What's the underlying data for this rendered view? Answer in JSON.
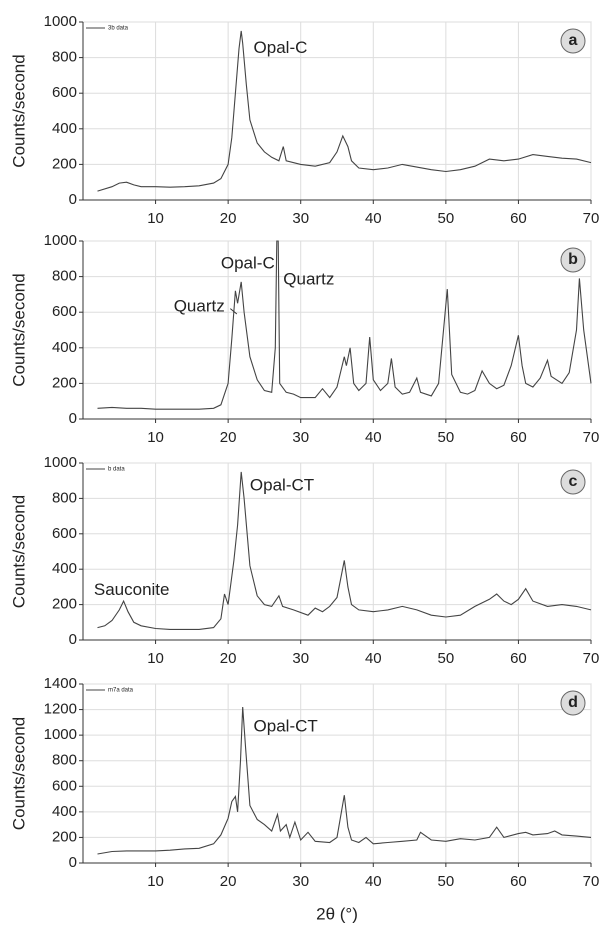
{
  "chart_data": [
    {
      "type": "line",
      "panel": "a",
      "ylabel": "Counts/second",
      "annotations": [
        "Opal-C"
      ],
      "x": [
        2,
        4,
        5,
        6,
        7,
        8,
        10,
        12,
        14,
        16,
        18,
        19,
        20,
        20.5,
        21,
        21.5,
        21.8,
        22,
        22.5,
        23,
        24,
        25,
        26,
        27,
        27.6,
        28,
        30,
        32,
        34,
        35,
        35.8,
        36.5,
        37,
        38,
        40,
        42,
        44,
        46,
        48,
        50,
        52,
        54,
        56,
        58,
        60,
        62,
        64,
        66,
        68,
        70
      ],
      "series": [
        {
          "name": "3b data",
          "color": "#444444",
          "values": [
            50,
            75,
            95,
            100,
            85,
            75,
            75,
            72,
            75,
            80,
            95,
            120,
            200,
            350,
            600,
            850,
            950,
            880,
            650,
            450,
            320,
            270,
            240,
            220,
            300,
            220,
            200,
            190,
            210,
            270,
            360,
            300,
            220,
            180,
            170,
            180,
            200,
            185,
            170,
            160,
            170,
            190,
            230,
            220,
            230,
            255,
            245,
            235,
            230,
            210
          ]
        }
      ],
      "xlim": [
        0,
        70
      ],
      "xticks": [
        10,
        20,
        30,
        40,
        50,
        60,
        70
      ],
      "ylim": [
        0,
        1000
      ],
      "yticks": [
        0,
        200,
        400,
        600,
        800,
        1000
      ],
      "grid": true
    },
    {
      "type": "line",
      "panel": "b",
      "ylabel": "Counts/second",
      "annotations": [
        "Opal-C",
        "Quartz",
        "Quartz"
      ],
      "x": [
        2,
        4,
        6,
        8,
        10,
        12,
        14,
        16,
        18,
        19,
        20,
        20.5,
        21,
        21.3,
        21.8,
        22.2,
        23,
        24,
        25,
        26,
        26.5,
        26.7,
        26.9,
        27.1,
        28,
        29,
        30,
        32,
        33,
        34,
        35,
        36,
        36.3,
        36.8,
        37.3,
        38,
        39,
        39.5,
        40,
        41,
        42,
        42.5,
        43,
        44,
        45,
        46,
        46.5,
        48,
        49,
        50.2,
        50.8,
        52,
        53,
        54,
        55,
        56,
        57,
        58,
        59,
        60,
        60.5,
        61,
        62,
        63,
        64,
        64.5,
        66,
        67,
        68,
        68.4,
        69,
        70
      ],
      "series": [
        {
          "color": "#444444",
          "values": [
            60,
            65,
            60,
            60,
            55,
            55,
            55,
            55,
            60,
            80,
            200,
            450,
            720,
            650,
            770,
            600,
            350,
            220,
            160,
            150,
            400,
            1000,
            1000,
            200,
            150,
            140,
            120,
            120,
            170,
            120,
            180,
            350,
            300,
            400,
            200,
            160,
            200,
            460,
            220,
            160,
            200,
            340,
            180,
            140,
            150,
            230,
            150,
            130,
            200,
            730,
            250,
            150,
            140,
            160,
            270,
            200,
            170,
            190,
            300,
            470,
            300,
            200,
            180,
            230,
            330,
            240,
            200,
            260,
            500,
            790,
            500,
            200
          ]
        }
      ],
      "xlim": [
        0,
        70
      ],
      "xticks": [
        10,
        20,
        30,
        40,
        50,
        60,
        70
      ],
      "ylim": [
        0,
        1000
      ],
      "yticks": [
        0,
        200,
        400,
        600,
        800,
        1000
      ],
      "grid": true
    },
    {
      "type": "line",
      "panel": "c",
      "ylabel": "Counts/second",
      "annotations": [
        "Opal-CT",
        "Sauconite"
      ],
      "x": [
        2,
        3,
        4,
        5,
        5.6,
        6.2,
        7,
        8,
        10,
        12,
        14,
        16,
        18,
        19,
        19.5,
        20,
        20.8,
        21.3,
        21.8,
        22.2,
        23,
        24,
        25,
        26,
        27,
        27.5,
        29,
        31,
        32,
        33,
        34,
        35,
        36,
        36.5,
        37,
        38,
        40,
        42,
        44,
        46,
        48,
        50,
        52,
        54,
        56,
        57,
        58,
        59,
        60,
        61,
        62,
        64,
        66,
        68,
        70
      ],
      "series": [
        {
          "name": "b data",
          "color": "#444444",
          "values": [
            70,
            80,
            110,
            170,
            220,
            160,
            100,
            80,
            65,
            60,
            60,
            60,
            70,
            120,
            260,
            200,
            450,
            650,
            950,
            800,
            420,
            250,
            200,
            190,
            250,
            190,
            170,
            140,
            180,
            160,
            190,
            240,
            450,
            300,
            200,
            170,
            160,
            170,
            190,
            170,
            140,
            130,
            140,
            190,
            230,
            260,
            220,
            200,
            230,
            290,
            220,
            190,
            200,
            190,
            170
          ]
        }
      ],
      "xlim": [
        0,
        70
      ],
      "xticks": [
        10,
        20,
        30,
        40,
        50,
        60,
        70
      ],
      "ylim": [
        0,
        1000
      ],
      "yticks": [
        0,
        200,
        400,
        600,
        800,
        1000
      ],
      "grid": true
    },
    {
      "type": "line",
      "panel": "d",
      "ylabel": "Counts/second",
      "xlabel": "2θ (°)",
      "annotations": [
        "Opal-CT"
      ],
      "x": [
        2,
        4,
        6,
        8,
        10,
        12,
        14,
        16,
        18,
        19,
        20,
        20.5,
        21,
        21.3,
        21.7,
        22,
        22.4,
        23,
        24,
        25,
        26,
        26.8,
        27.2,
        28,
        28.5,
        29.2,
        30,
        31,
        32,
        34,
        35,
        36,
        36.5,
        37,
        38,
        39,
        40,
        42,
        44,
        46,
        46.5,
        48,
        50,
        52,
        54,
        56,
        57,
        58,
        60,
        61,
        62,
        64,
        65,
        66,
        68,
        70
      ],
      "series": [
        {
          "name": "m7a data",
          "color": "#444444",
          "values": [
            70,
            90,
            95,
            95,
            95,
            100,
            110,
            115,
            150,
            220,
            350,
            480,
            520,
            400,
            800,
            1220,
            900,
            450,
            340,
            300,
            250,
            380,
            250,
            300,
            200,
            320,
            180,
            240,
            170,
            160,
            200,
            530,
            280,
            180,
            160,
            200,
            150,
            160,
            170,
            180,
            240,
            180,
            170,
            190,
            180,
            200,
            280,
            200,
            230,
            240,
            220,
            230,
            250,
            220,
            210,
            200
          ]
        }
      ],
      "xlim": [
        0,
        70
      ],
      "xticks": [
        10,
        20,
        30,
        40,
        50,
        60,
        70
      ],
      "ylim": [
        0,
        1400
      ],
      "yticks": [
        0,
        200,
        400,
        600,
        800,
        1000,
        1200,
        1400
      ],
      "grid": true
    }
  ]
}
